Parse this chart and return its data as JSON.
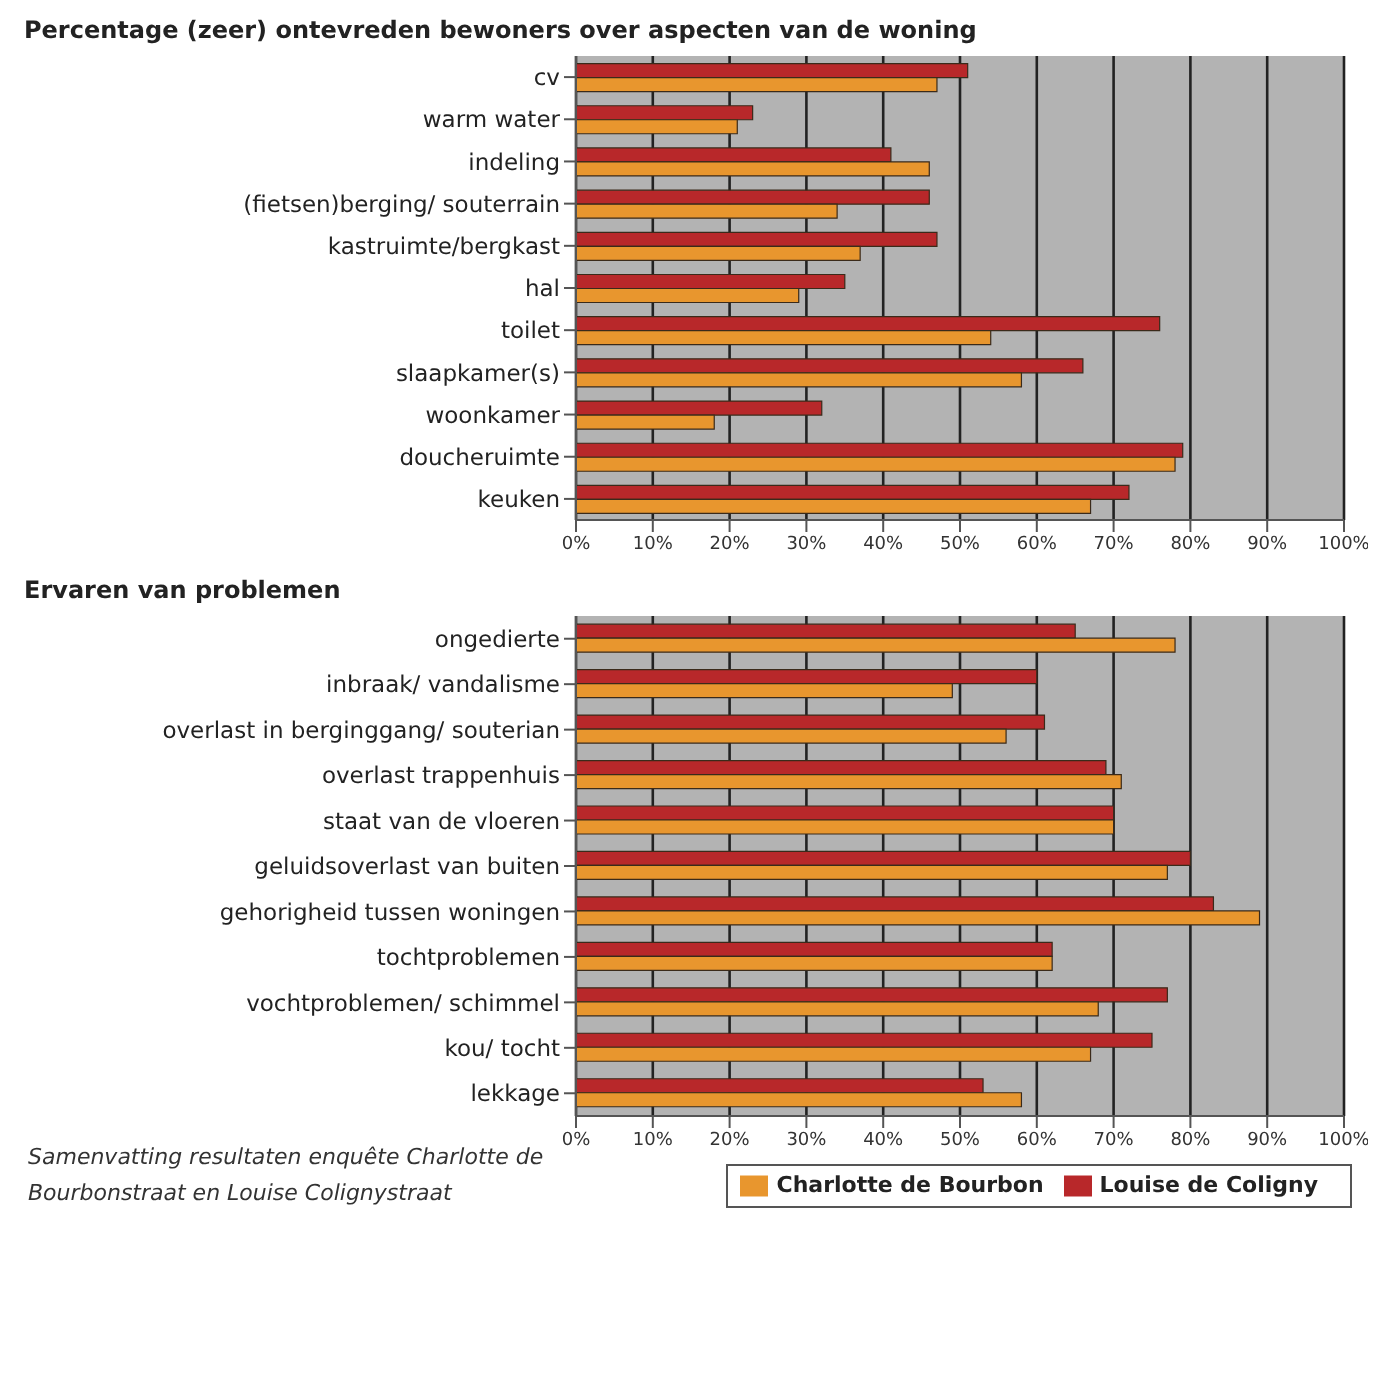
{
  "chart_data": [
    {
      "type": "bar",
      "orientation": "horizontal",
      "title": "Percentage (zeer) ontevreden bewoners over aspecten van de woning",
      "categories": [
        "cv",
        "warm water",
        "indeling",
        "(fietsen)berging/ souterrain",
        "kastruimte/bergkast",
        "hal",
        "toilet",
        "slaapkamer(s)",
        "woonkamer",
        "doucheruimte",
        "keuken"
      ],
      "series": [
        {
          "color": "#b8282a",
          "values": [
            51,
            23,
            41,
            46,
            47,
            35,
            76,
            66,
            32,
            79,
            72
          ]
        },
        {
          "color": "#e8962e",
          "values": [
            47,
            21,
            46,
            34,
            37,
            29,
            54,
            58,
            18,
            78,
            67
          ]
        }
      ],
      "xlim": [
        0,
        100
      ],
      "xticks": [
        {
          "value": 0,
          "label": "0%"
        },
        {
          "value": 10,
          "label": "10%"
        },
        {
          "value": 20,
          "label": "20%"
        },
        {
          "value": 30,
          "label": "30%"
        },
        {
          "value": 40,
          "label": "40%"
        },
        {
          "value": 50,
          "label": "50%"
        },
        {
          "value": 60,
          "label": "60%"
        },
        {
          "value": 70,
          "label": "70%"
        },
        {
          "value": 80,
          "label": "80%"
        },
        {
          "value": 90,
          "label": "90%"
        },
        {
          "value": 100,
          "label": "100%"
        }
      ],
      "grid": "x",
      "legend": false
    },
    {
      "type": "bar",
      "orientation": "horizontal",
      "title": "Ervaren van problemen",
      "categories": [
        "ongedierte",
        "inbraak/ vandalisme",
        "overlast in berginggang/ souterian",
        "overlast trappenhuis",
        "staat van de vloeren",
        "geluidsoverlast van buiten",
        "gehorigheid tussen woningen",
        "tochtproblemen",
        "vochtproblemen/ schimmel",
        "kou/ tocht",
        "lekkage"
      ],
      "series": [
        {
          "name": "Louise de Coligny",
          "color": "#b8282a",
          "values": [
            65,
            60,
            61,
            69,
            70,
            80,
            83,
            62,
            77,
            75,
            53
          ]
        },
        {
          "name": "Charlotte de Bourbon",
          "color": "#e8962e",
          "values": [
            78,
            49,
            56,
            71,
            70,
            77,
            89,
            62,
            68,
            67,
            58
          ]
        }
      ],
      "xlim": [
        0,
        100
      ],
      "xticks": [
        {
          "value": 0,
          "label": "0%"
        },
        {
          "value": 10,
          "label": "10%"
        },
        {
          "value": 20,
          "label": "20%"
        },
        {
          "value": 30,
          "label": "30%"
        },
        {
          "value": 40,
          "label": "40%"
        },
        {
          "value": 50,
          "label": "50%"
        },
        {
          "value": 60,
          "label": "60%"
        },
        {
          "value": 70,
          "label": "70%"
        },
        {
          "value": 80,
          "label": "80%"
        },
        {
          "value": 90,
          "label": "90%"
        },
        {
          "value": 100,
          "label": "100%"
        }
      ],
      "grid": "x",
      "legend": "bottom right",
      "annotations": [
        "Samenvatting resultaten enquête Charlotte de Bourbonstraat en Louise Colignystraat"
      ]
    }
  ]
}
